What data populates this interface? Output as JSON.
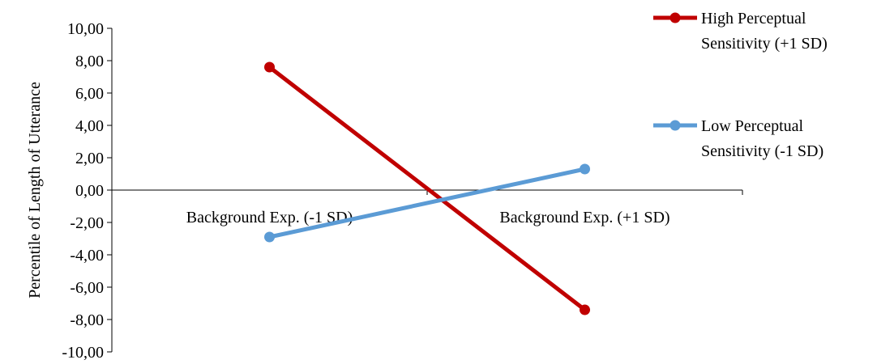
{
  "chart_data": {
    "type": "line",
    "title": "",
    "xlabel": "",
    "ylabel": "Percentile of  Length of Utterance",
    "categories": [
      "Background Exp. (-1 SD)",
      "Background Exp. (+1 SD)"
    ],
    "ylim": [
      -10,
      10
    ],
    "yticks": [
      "10,00",
      "8,00",
      "6,00",
      "4,00",
      "2,00",
      "0,00",
      "-2,00",
      "-4,00",
      "-6,00",
      "-8,00",
      "-10,00"
    ],
    "ytick_values": [
      10,
      8,
      6,
      4,
      2,
      0,
      -2,
      -4,
      -6,
      -8,
      -10
    ],
    "grid": false,
    "legend_position": "right",
    "series": [
      {
        "name": "High Perceptual Sensitivity (+1 SD)",
        "legend_lines": [
          "High Perceptual",
          "Sensitivity (+1 SD)"
        ],
        "values": [
          7.6,
          -7.4
        ],
        "color": "#C00000"
      },
      {
        "name": "Low Perceptual Sensitivity (-1 SD)",
        "legend_lines": [
          "Low Perceptual",
          "Sensitivity (-1 SD)"
        ],
        "values": [
          -2.9,
          1.3
        ],
        "color": "#5B9BD5"
      }
    ]
  }
}
